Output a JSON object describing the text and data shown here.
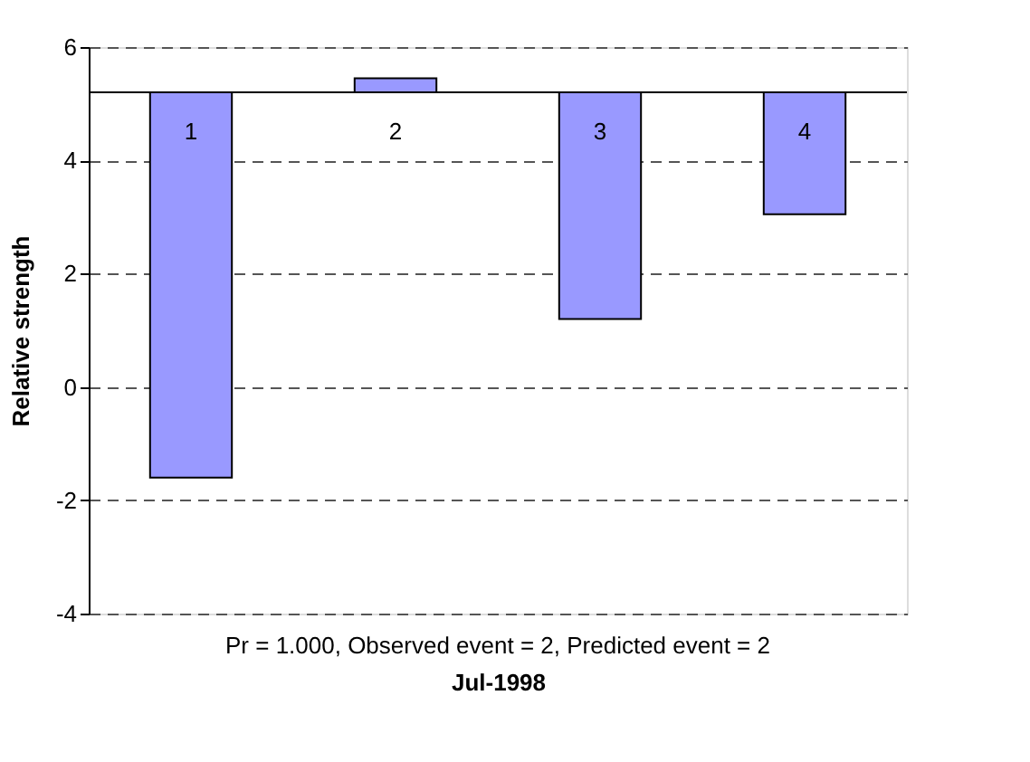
{
  "chart_data": {
    "type": "bar",
    "xlabel": "Jul-1998",
    "ylabel": "Relative strength",
    "categories": [
      "1",
      "2",
      "3",
      "4"
    ],
    "base": [
      5.2,
      5.2,
      5.2,
      5.2
    ],
    "values": [
      -6.8,
      0.25,
      -4.0,
      -2.15
    ],
    "color": "#9999ff",
    "ylim": [
      -4,
      6
    ],
    "yticks": [
      -4,
      -2,
      0,
      2,
      4,
      6
    ],
    "grid": "y",
    "line_style": "dashed",
    "annotations": [
      "Pr = 1.000, Observed event = 2, Predicted event = 2"
    ]
  }
}
